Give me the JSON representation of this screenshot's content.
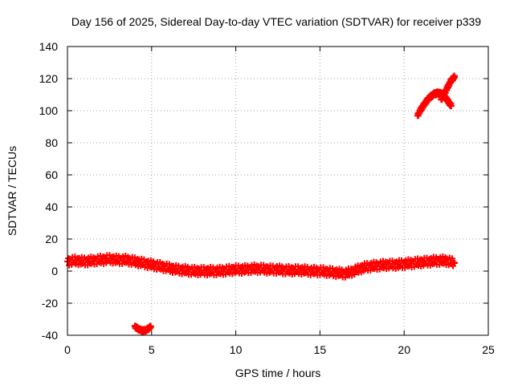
{
  "chart_data": {
    "type": "scatter",
    "title": "Day 156 of 2025, Sidereal Day-to-day VTEC variation (SDTVAR) for receiver p339",
    "xlabel": "GPS time / hours",
    "ylabel": "SDTVAR / TECUs",
    "xlim": [
      0,
      25
    ],
    "ylim": [
      -40,
      140
    ],
    "xticks": [
      0,
      5,
      10,
      15,
      20,
      25
    ],
    "yticks": [
      -40,
      -20,
      0,
      20,
      40,
      60,
      80,
      100,
      120,
      140
    ],
    "grid": true,
    "marker": "+",
    "marker_color": "#ff0000",
    "series": [
      {
        "name": "main band",
        "spread": 2.5,
        "points": [
          [
            0.0,
            6
          ],
          [
            0.5,
            6.5
          ],
          [
            1.0,
            6
          ],
          [
            1.5,
            6.5
          ],
          [
            2.0,
            7
          ],
          [
            2.5,
            7.5
          ],
          [
            3.0,
            7
          ],
          [
            3.5,
            7
          ],
          [
            4.0,
            6
          ],
          [
            4.5,
            5
          ],
          [
            5.0,
            4
          ],
          [
            5.5,
            3
          ],
          [
            6.0,
            2
          ],
          [
            6.5,
            1
          ],
          [
            7.0,
            0.5
          ],
          [
            7.5,
            0
          ],
          [
            8.0,
            0
          ],
          [
            8.5,
            0
          ],
          [
            9.0,
            0
          ],
          [
            9.5,
            0.5
          ],
          [
            10.0,
            1
          ],
          [
            10.5,
            1
          ],
          [
            11.0,
            1.5
          ],
          [
            11.5,
            1.5
          ],
          [
            12.0,
            1
          ],
          [
            12.5,
            1
          ],
          [
            13.0,
            0.5
          ],
          [
            13.5,
            0.5
          ],
          [
            14.0,
            0.5
          ],
          [
            14.5,
            0
          ],
          [
            15.0,
            0
          ],
          [
            15.5,
            -0.5
          ],
          [
            16.0,
            -1
          ],
          [
            16.5,
            -1.5
          ],
          [
            17.0,
            0
          ],
          [
            17.5,
            2
          ],
          [
            18.0,
            3
          ],
          [
            18.5,
            3.5
          ],
          [
            19.0,
            4
          ],
          [
            19.5,
            4
          ],
          [
            20.0,
            4.5
          ],
          [
            20.5,
            5
          ],
          [
            21.0,
            5.5
          ],
          [
            21.5,
            6
          ],
          [
            22.0,
            6.5
          ],
          [
            22.5,
            6.5
          ],
          [
            23.0,
            5
          ]
        ]
      },
      {
        "name": "negative dip",
        "spread": 0.8,
        "points": [
          [
            4.0,
            -34.5
          ],
          [
            4.2,
            -36
          ],
          [
            4.4,
            -37
          ],
          [
            4.6,
            -37
          ],
          [
            4.8,
            -36
          ],
          [
            4.95,
            -34.5
          ]
        ]
      },
      {
        "name": "upper arc",
        "spread": 1.0,
        "points": [
          [
            20.8,
            97
          ],
          [
            21.0,
            101
          ],
          [
            21.2,
            104
          ],
          [
            21.4,
            107
          ],
          [
            21.6,
            109
          ],
          [
            21.8,
            110.5
          ],
          [
            22.0,
            111
          ],
          [
            22.2,
            110.5
          ],
          [
            22.4,
            109
          ],
          [
            22.6,
            106
          ],
          [
            22.8,
            103
          ]
        ]
      },
      {
        "name": "upper rise",
        "spread": 1.0,
        "points": [
          [
            22.2,
            107
          ],
          [
            22.4,
            111
          ],
          [
            22.6,
            115
          ],
          [
            22.8,
            119
          ],
          [
            23.0,
            121
          ]
        ]
      }
    ]
  }
}
